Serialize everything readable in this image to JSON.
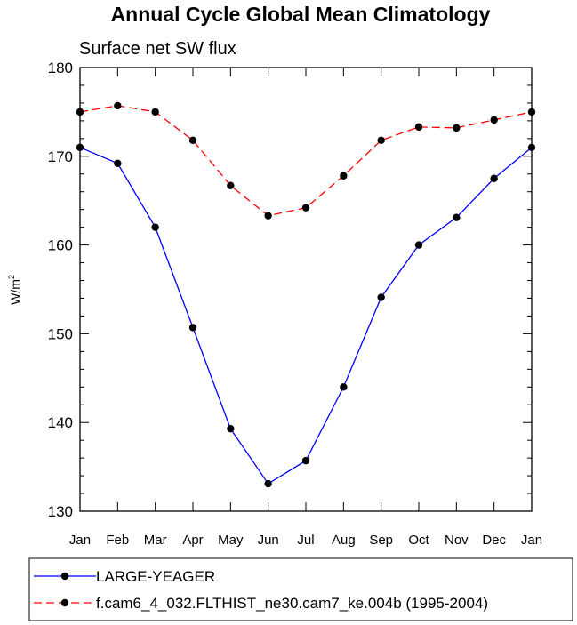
{
  "chart_data": {
    "type": "line",
    "title": "Annual Cycle Global Mean Climatology",
    "subtitle": "Surface net SW flux",
    "ylabel_base": "W/m",
    "ylabel_sup": "2",
    "xlabel": "",
    "categories": [
      "Jan",
      "Feb",
      "Mar",
      "Apr",
      "May",
      "Jun",
      "Jul",
      "Aug",
      "Sep",
      "Oct",
      "Nov",
      "Dec",
      "Jan"
    ],
    "ylim": [
      130,
      180
    ],
    "yticks": [
      130,
      140,
      150,
      160,
      170,
      180
    ],
    "series": [
      {
        "name": "LARGE-YEAGER",
        "color": "#0000ff",
        "dash": "solid",
        "values": [
          171.0,
          169.2,
          162.0,
          150.7,
          139.3,
          133.1,
          135.7,
          144.0,
          154.1,
          160.0,
          163.1,
          167.5,
          171.0
        ]
      },
      {
        "name": "f.cam6_4_032.FLTHIST_ne30.cam7_ke.004b (1995-2004)",
        "color": "#ff0000",
        "dash": "dashed",
        "values": [
          175.0,
          175.7,
          175.0,
          171.8,
          166.7,
          163.3,
          164.2,
          167.8,
          171.8,
          173.3,
          173.2,
          174.1,
          175.0
        ]
      }
    ],
    "legend_position": "bottom"
  }
}
